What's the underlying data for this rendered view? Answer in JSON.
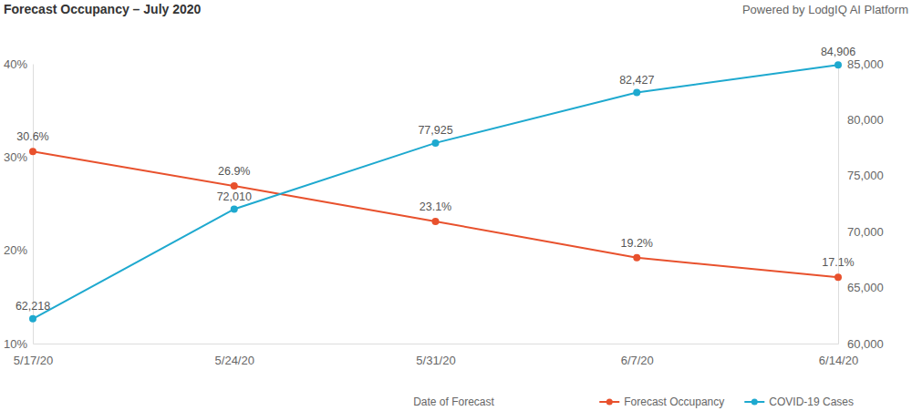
{
  "chart_data": {
    "type": "line",
    "title": "Forecast Occupancy – July 2020",
    "subtitle": "Powered by LodgIQ AI Platform",
    "x_label": "Date of Forecast",
    "categories": [
      "5/17/20",
      "5/24/20",
      "5/31/20",
      "6/7/20",
      "6/14/20"
    ],
    "series": [
      {
        "name": "Forecast Occupancy",
        "color": "#e8512d",
        "marker": "circle",
        "values": [
          30.6,
          26.9,
          23.1,
          19.2,
          17.1
        ],
        "value_labels": [
          "30.6%",
          "26.9%",
          "23.1%",
          "19.2%",
          "17.1%"
        ]
      },
      {
        "name": "COVID-19 Cases",
        "color": "#1ea9cf",
        "marker": "circle",
        "axis": "y2",
        "values": [
          62218,
          72010,
          77925,
          82427,
          84906
        ],
        "value_labels": [
          "62,218",
          "72,010",
          "77,925",
          "82,427",
          "84,906"
        ]
      }
    ],
    "ylim": [
      10,
      40
    ],
    "yticks": [
      {
        "value": 10,
        "label": "10%"
      },
      {
        "value": 20,
        "label": "20%"
      },
      {
        "value": 30,
        "label": "30%"
      },
      {
        "value": 40,
        "label": "40%"
      }
    ],
    "y2lim": [
      60000,
      85000
    ],
    "y2ticks": [
      {
        "value": 60000,
        "label": "60,000"
      },
      {
        "value": 65000,
        "label": "65,000"
      },
      {
        "value": 70000,
        "label": "70,000"
      },
      {
        "value": 75000,
        "label": "75,000"
      },
      {
        "value": 80000,
        "label": "80,000"
      },
      {
        "value": 85000,
        "label": "85,000"
      }
    ],
    "grid": false,
    "legend": "bottom right",
    "data_labels": true
  }
}
